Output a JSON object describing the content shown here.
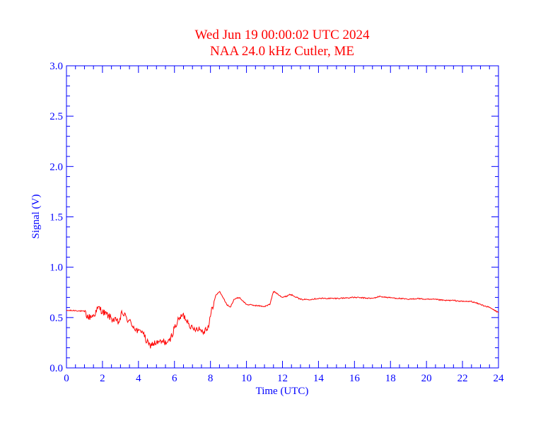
{
  "chart_data": {
    "type": "line",
    "title": "Wed Jun 19 00:00:02 UTC 2024",
    "subtitle": "NAA 24.0 kHz Cutler, ME",
    "xlabel": "Time (UTC)",
    "ylabel": "Signal (V)",
    "xlim": [
      0,
      24
    ],
    "ylim": [
      0.0,
      3.0
    ],
    "x_ticks": [
      "0",
      "2",
      "4",
      "6",
      "8",
      "10",
      "12",
      "14",
      "16",
      "18",
      "20",
      "22",
      "24"
    ],
    "y_ticks": [
      "0.0",
      "0.5",
      "1.0",
      "1.5",
      "2.0",
      "2.5",
      "3.0"
    ],
    "grid": false,
    "colors": {
      "title": "#ff0000",
      "axes": "#0000ff",
      "series": "#ff0000"
    },
    "series": [
      {
        "x": [
          0,
          0.5,
          1.0,
          1.2,
          1.5,
          1.8,
          2.0,
          2.3,
          2.6,
          2.9,
          3.1,
          3.4,
          3.7,
          4.0,
          4.2,
          4.4,
          4.6,
          4.8,
          5.1,
          5.4,
          5.7,
          6.0,
          6.3,
          6.5,
          6.8,
          7.0,
          7.3,
          7.6,
          7.9,
          8.1,
          8.3,
          8.5,
          8.7,
          8.9,
          9.1,
          9.3,
          9.6,
          10.0,
          10.5,
          11.0,
          11.3,
          11.5,
          11.7,
          12.0,
          12.2,
          12.4,
          12.6,
          13.0,
          13.5,
          14.0,
          15.0,
          16.0,
          17.0,
          17.4,
          17.8,
          18.5,
          19.0,
          19.5,
          20.0,
          20.5,
          21.0,
          21.5,
          22.0,
          22.5,
          23.0,
          23.5,
          24.0
        ],
        "y": [
          0.57,
          0.57,
          0.56,
          0.5,
          0.52,
          0.6,
          0.56,
          0.52,
          0.48,
          0.45,
          0.55,
          0.48,
          0.42,
          0.35,
          0.38,
          0.28,
          0.22,
          0.24,
          0.25,
          0.26,
          0.25,
          0.4,
          0.5,
          0.52,
          0.45,
          0.38,
          0.4,
          0.36,
          0.42,
          0.6,
          0.72,
          0.76,
          0.7,
          0.63,
          0.6,
          0.68,
          0.7,
          0.63,
          0.62,
          0.61,
          0.63,
          0.76,
          0.74,
          0.7,
          0.71,
          0.73,
          0.72,
          0.68,
          0.68,
          0.69,
          0.69,
          0.7,
          0.69,
          0.71,
          0.7,
          0.69,
          0.68,
          0.69,
          0.68,
          0.68,
          0.67,
          0.67,
          0.66,
          0.66,
          0.63,
          0.6,
          0.55
        ]
      }
    ]
  }
}
